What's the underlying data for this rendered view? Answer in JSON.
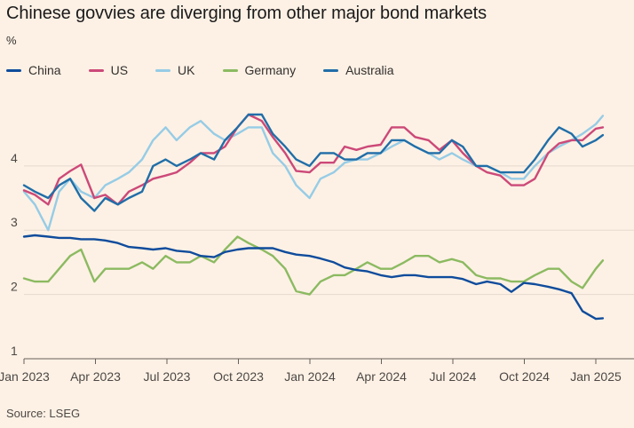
{
  "title": "Chinese govvies are diverging from other major bond markets",
  "unit": "%",
  "source": "Source: LSEG",
  "chart_data": {
    "type": "line",
    "ylim": [
      1,
      5.2
    ],
    "yticks": [
      1,
      2,
      3,
      4
    ],
    "grid": true,
    "legend": "top-left",
    "x_labels": [
      "Jan 2023",
      "Apr 2023",
      "Jul 2023",
      "Oct 2023",
      "Jan 2024",
      "Apr 2024",
      "Jul 2024",
      "Oct 2024",
      "Jan 2025"
    ],
    "x": [
      "2023-01-01",
      "2023-01-15",
      "2023-02-01",
      "2023-02-15",
      "2023-03-01",
      "2023-03-15",
      "2023-04-01",
      "2023-04-15",
      "2023-05-01",
      "2023-05-15",
      "2023-06-01",
      "2023-06-15",
      "2023-07-01",
      "2023-07-15",
      "2023-08-01",
      "2023-08-15",
      "2023-09-01",
      "2023-09-15",
      "2023-10-01",
      "2023-10-15",
      "2023-11-01",
      "2023-11-15",
      "2023-12-01",
      "2023-12-15",
      "2024-01-01",
      "2024-01-15",
      "2024-02-01",
      "2024-02-15",
      "2024-03-01",
      "2024-03-15",
      "2024-04-01",
      "2024-04-15",
      "2024-05-01",
      "2024-05-15",
      "2024-06-01",
      "2024-06-15",
      "2024-07-01",
      "2024-07-15",
      "2024-08-01",
      "2024-08-15",
      "2024-09-01",
      "2024-09-15",
      "2024-10-01",
      "2024-10-15",
      "2024-11-01",
      "2024-11-15",
      "2024-12-01",
      "2024-12-15",
      "2025-01-01",
      "2025-01-10"
    ],
    "series": [
      {
        "name": "China",
        "color": "#0f4c9c",
        "values": [
          2.9,
          2.92,
          2.9,
          2.88,
          2.88,
          2.86,
          2.86,
          2.84,
          2.8,
          2.74,
          2.72,
          2.7,
          2.72,
          2.68,
          2.66,
          2.6,
          2.58,
          2.66,
          2.7,
          2.72,
          2.72,
          2.72,
          2.66,
          2.62,
          2.6,
          2.56,
          2.5,
          2.42,
          2.38,
          2.36,
          2.3,
          2.27,
          2.3,
          2.3,
          2.27,
          2.27,
          2.27,
          2.24,
          2.16,
          2.2,
          2.16,
          2.04,
          2.18,
          2.16,
          2.12,
          2.08,
          2.02,
          1.74,
          1.62,
          1.63
        ]
      },
      {
        "name": "US",
        "color": "#cc4978",
        "values": [
          3.62,
          3.55,
          3.4,
          3.8,
          3.92,
          4.02,
          3.5,
          3.55,
          3.4,
          3.6,
          3.7,
          3.8,
          3.85,
          3.9,
          4.05,
          4.2,
          4.2,
          4.3,
          4.6,
          4.8,
          4.7,
          4.45,
          4.2,
          3.92,
          3.9,
          4.05,
          4.05,
          4.3,
          4.25,
          4.3,
          4.33,
          4.6,
          4.6,
          4.45,
          4.4,
          4.25,
          4.4,
          4.2,
          4.0,
          3.9,
          3.85,
          3.7,
          3.7,
          3.8,
          4.2,
          4.35,
          4.4,
          4.4,
          4.58,
          4.6
        ]
      },
      {
        "name": "UK",
        "color": "#96cce6",
        "values": [
          3.6,
          3.4,
          3.0,
          3.6,
          3.8,
          3.6,
          3.5,
          3.7,
          3.8,
          3.9,
          4.1,
          4.4,
          4.6,
          4.4,
          4.6,
          4.7,
          4.5,
          4.4,
          4.5,
          4.6,
          4.6,
          4.2,
          4.0,
          3.7,
          3.5,
          3.8,
          3.9,
          4.05,
          4.1,
          4.1,
          4.2,
          4.3,
          4.4,
          4.3,
          4.2,
          4.1,
          4.2,
          4.1,
          4.0,
          4.0,
          3.9,
          3.8,
          3.8,
          4.0,
          4.2,
          4.3,
          4.4,
          4.5,
          4.65,
          4.78
        ]
      },
      {
        "name": "Germany",
        "color": "#8cba61",
        "values": [
          2.25,
          2.2,
          2.2,
          2.4,
          2.6,
          2.7,
          2.2,
          2.4,
          2.4,
          2.4,
          2.5,
          2.4,
          2.6,
          2.5,
          2.5,
          2.6,
          2.5,
          2.7,
          2.9,
          2.8,
          2.7,
          2.6,
          2.4,
          2.05,
          2.0,
          2.2,
          2.3,
          2.3,
          2.4,
          2.5,
          2.4,
          2.4,
          2.5,
          2.6,
          2.6,
          2.5,
          2.55,
          2.5,
          2.3,
          2.25,
          2.25,
          2.2,
          2.2,
          2.3,
          2.4,
          2.4,
          2.2,
          2.1,
          2.4,
          2.53
        ]
      },
      {
        "name": "Australia",
        "color": "#206ea8",
        "values": [
          3.7,
          3.6,
          3.5,
          3.7,
          3.8,
          3.5,
          3.3,
          3.5,
          3.4,
          3.5,
          3.6,
          4.0,
          4.1,
          4.0,
          4.1,
          4.2,
          4.1,
          4.4,
          4.6,
          4.8,
          4.8,
          4.5,
          4.3,
          4.1,
          4.0,
          4.2,
          4.2,
          4.1,
          4.1,
          4.2,
          4.2,
          4.4,
          4.4,
          4.3,
          4.2,
          4.2,
          4.4,
          4.3,
          4.0,
          4.0,
          3.9,
          3.9,
          3.9,
          4.1,
          4.4,
          4.6,
          4.5,
          4.3,
          4.4,
          4.48
        ]
      }
    ]
  }
}
